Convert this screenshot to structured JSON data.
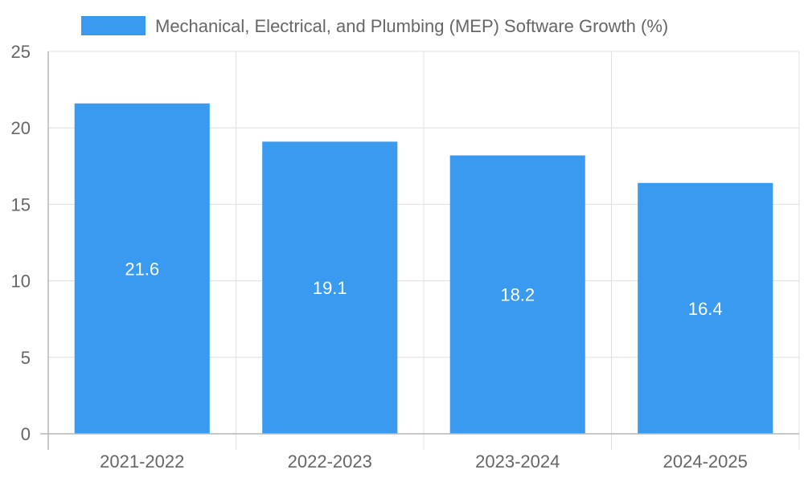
{
  "chart_data": {
    "type": "bar",
    "title": "",
    "xlabel": "",
    "ylabel": "",
    "categories": [
      "2021-2022",
      "2022-2023",
      "2023-2024",
      "2024-2025"
    ],
    "series": [
      {
        "name": "Mechanical, Electrical, and Plumbing (MEP) Software Growth (%)",
        "values": [
          21.6,
          19.1,
          18.2,
          16.4
        ],
        "color": "#3a9af0"
      }
    ],
    "data_labels": [
      "21.6",
      "19.1",
      "18.2",
      "16.4"
    ],
    "ylim": [
      0,
      25
    ],
    "yticks": [
      "0",
      "5",
      "10",
      "15",
      "20",
      "25"
    ],
    "grid": true,
    "legend_position": "top"
  }
}
